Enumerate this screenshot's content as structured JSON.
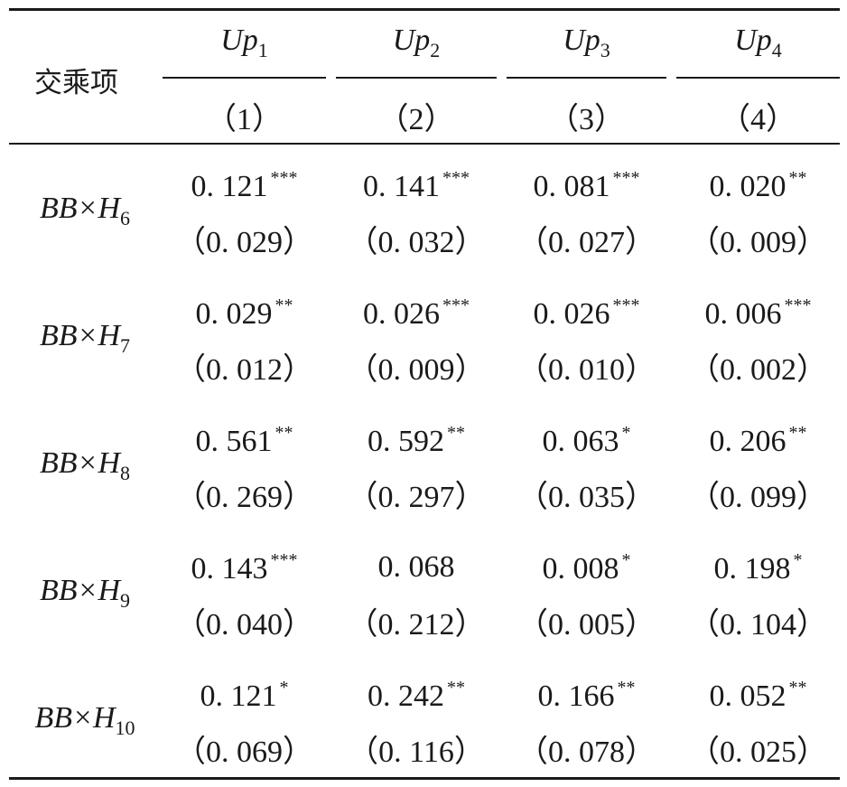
{
  "table": {
    "corner_label": "交乘项",
    "columns": [
      {
        "var": "Up",
        "sub": "1",
        "num": "（1）"
      },
      {
        "var": "Up",
        "sub": "2",
        "num": "（2）"
      },
      {
        "var": "Up",
        "sub": "3",
        "num": "（3）"
      },
      {
        "var": "Up",
        "sub": "4",
        "num": "（4）"
      }
    ],
    "rows": [
      {
        "label": "BB×H",
        "sub": "6",
        "cells": [
          {
            "coef": "0. 121",
            "stars": "***",
            "se": "（0. 029）"
          },
          {
            "coef": "0. 141",
            "stars": "***",
            "se": "（0. 032）"
          },
          {
            "coef": "0. 081",
            "stars": "***",
            "se": "（0. 027）"
          },
          {
            "coef": "0. 020",
            "stars": "**",
            "se": "（0. 009）"
          }
        ]
      },
      {
        "label": "BB×H",
        "sub": "7",
        "cells": [
          {
            "coef": "0. 029",
            "stars": "**",
            "se": "（0. 012）"
          },
          {
            "coef": "0. 026",
            "stars": "***",
            "se": "（0. 009）"
          },
          {
            "coef": "0. 026",
            "stars": "***",
            "se": "（0. 010）"
          },
          {
            "coef": "0. 006",
            "stars": "***",
            "se": "（0. 002）"
          }
        ]
      },
      {
        "label": "BB×H",
        "sub": "8",
        "cells": [
          {
            "coef": "0. 561",
            "stars": "**",
            "se": "（0. 269）"
          },
          {
            "coef": "0. 592",
            "stars": "**",
            "se": "（0. 297）"
          },
          {
            "coef": "0. 063",
            "stars": "*",
            "se": "（0. 035）"
          },
          {
            "coef": "0. 206",
            "stars": "**",
            "se": "（0. 099）"
          }
        ]
      },
      {
        "label": "BB×H",
        "sub": "9",
        "cells": [
          {
            "coef": "0. 143",
            "stars": "***",
            "se": "（0. 040）"
          },
          {
            "coef": "0. 068",
            "stars": "",
            "se": "（0. 212）"
          },
          {
            "coef": "0. 008",
            "stars": "*",
            "se": "（0. 005）"
          },
          {
            "coef": "0. 198",
            "stars": "*",
            "se": "（0. 104）"
          }
        ]
      },
      {
        "label": "BB×H",
        "sub": "10",
        "cells": [
          {
            "coef": "0. 121",
            "stars": "*",
            "se": "（0. 069）"
          },
          {
            "coef": "0. 242",
            "stars": "**",
            "se": "（0. 116）"
          },
          {
            "coef": "0. 166",
            "stars": "**",
            "se": "（0. 078）"
          },
          {
            "coef": "0. 052",
            "stars": "**",
            "se": "（0. 025）"
          }
        ]
      }
    ]
  }
}
